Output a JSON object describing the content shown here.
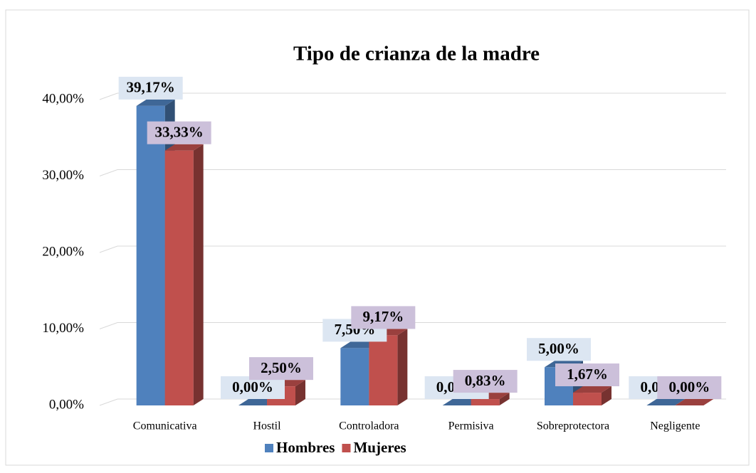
{
  "chart_data": {
    "type": "bar3d",
    "title": "Tipo de crianza de la madre",
    "categories": [
      "Comunicativa",
      "Hostil",
      "Controladora",
      "Permisiva",
      "Sobreprotectora",
      "Negligente"
    ],
    "series": [
      {
        "name": "Hombres",
        "color": "#4f81bd",
        "values": [
          39.17,
          0,
          7.5,
          0,
          5,
          0
        ],
        "value_labels": [
          "39,17%",
          "0,00%",
          "7,50%",
          "0,00%",
          "5,00%",
          "0,00%"
        ]
      },
      {
        "name": "Mujeres",
        "color": "#c0504d",
        "values": [
          33.33,
          2.5,
          9.17,
          0.83,
          1.67,
          0
        ],
        "value_labels": [
          "33,33%",
          "2,50%",
          "9,17%",
          "0,83%",
          "1,67%",
          "0,00%"
        ]
      }
    ],
    "ylim": [
      0,
      40
    ],
    "yticks": [
      {
        "value": 0,
        "label": "0,00%"
      },
      {
        "value": 10,
        "label": "10,00%"
      },
      {
        "value": 20,
        "label": "20,00%"
      },
      {
        "value": 30,
        "label": "30,00%"
      },
      {
        "value": 40,
        "label": "40,00%"
      }
    ],
    "grid": true,
    "legend": "bottom"
  }
}
